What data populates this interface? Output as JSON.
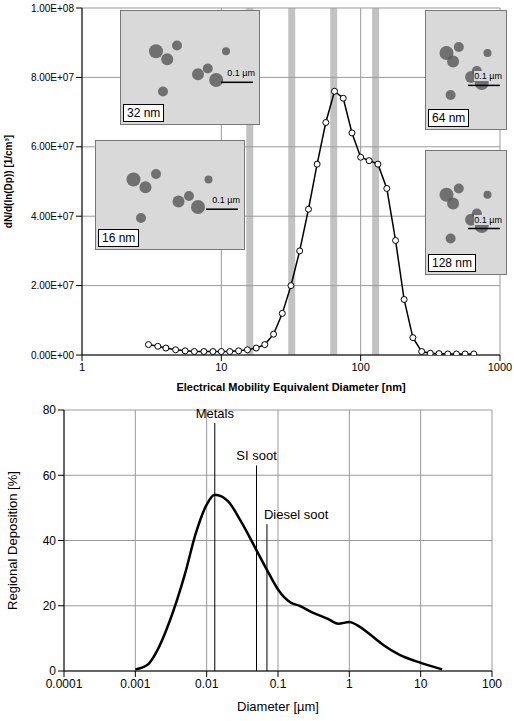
{
  "chart_data": [
    {
      "type": "line",
      "x_label": "Electrical Mobility Equivalent Diameter [nm]",
      "y_label": "dN/d(ln(Dp)) [1/cm³]",
      "log": "x",
      "xlim": [
        1,
        1000
      ],
      "xticks": [
        1,
        10,
        100,
        1000
      ],
      "ylim": [
        0,
        100000000
      ],
      "yticks": [
        {
          "value": 0,
          "label": "0.00E+00"
        },
        {
          "value": 20000000,
          "label": "2.00E+07"
        },
        {
          "value": 40000000,
          "label": "4.00E+07"
        },
        {
          "value": 60000000,
          "label": "6.00E+07"
        },
        {
          "value": 80000000,
          "label": "8.00E+07"
        },
        {
          "value": 100000000,
          "label": "1.00E+08"
        }
      ],
      "grid": true,
      "color": "#000000",
      "marker": "circle",
      "x": [
        3,
        3.5,
        4,
        4.7,
        5.5,
        6.4,
        7.5,
        8.7,
        10,
        11.5,
        13.3,
        15.4,
        17.8,
        20.5,
        23.7,
        27.4,
        31.6,
        36.5,
        42.2,
        48.7,
        56.2,
        64.9,
        75,
        86.6,
        100,
        115,
        133,
        154,
        178,
        205,
        237,
        274,
        316,
        365,
        422,
        487,
        562,
        649
      ],
      "values": [
        3000000,
        2500000,
        2000000,
        1500000,
        1200000,
        1000000,
        1000000,
        1000000,
        1000000,
        1000000,
        1200000,
        1500000,
        2000000,
        3000000,
        6000000,
        12000000,
        20000000,
        30000000,
        42000000,
        55000000,
        67000000,
        76000000,
        74000000,
        64000000,
        57000000,
        56000000,
        55000000,
        48000000,
        33000000,
        16000000,
        5000000,
        1000000,
        500000,
        400000,
        300000,
        300000,
        300000,
        300000
      ],
      "insets": [
        {
          "x": 32,
          "label": "32 nm",
          "scale_bar": "0.1 µm"
        },
        {
          "x": 64,
          "label": "64 nm",
          "scale_bar": "0.1 µm"
        },
        {
          "x": 16,
          "label": "16 nm",
          "scale_bar": "0.1 µm"
        },
        {
          "x": 128,
          "label": "128 nm",
          "scale_bar": "0.1 µm"
        }
      ]
    },
    {
      "type": "line",
      "x_label": "Diameter [µm]",
      "y_label": "Regional Deposition [%]",
      "log": "x",
      "xlim": [
        0.0001,
        100
      ],
      "xticks": [
        0.0001,
        0.001,
        0.01,
        0.1,
        1,
        10,
        100
      ],
      "ylim": [
        0,
        80
      ],
      "yticks": [
        0,
        20,
        40,
        60,
        80
      ],
      "grid": true,
      "color": "#000000",
      "x": [
        0.001,
        0.0015,
        0.002,
        0.003,
        0.005,
        0.007,
        0.01,
        0.013,
        0.02,
        0.03,
        0.05,
        0.07,
        0.1,
        0.15,
        0.2,
        0.3,
        0.5,
        0.7,
        1,
        1.3,
        2,
        3,
        5,
        10,
        20
      ],
      "values": [
        0.5,
        2,
        6,
        15,
        30,
        42,
        51,
        54,
        52,
        46,
        37,
        31,
        25,
        21,
        20,
        18,
        16,
        14.5,
        15,
        14,
        11,
        8,
        5,
        2.5,
        0.5
      ],
      "annotations": [
        {
          "text": "Metals",
          "x": 0.013,
          "y": 76
        },
        {
          "text": "SI soot",
          "x": 0.05,
          "y": 63
        },
        {
          "text": "Diesel soot",
          "x": 0.07,
          "y": 45
        }
      ]
    }
  ]
}
